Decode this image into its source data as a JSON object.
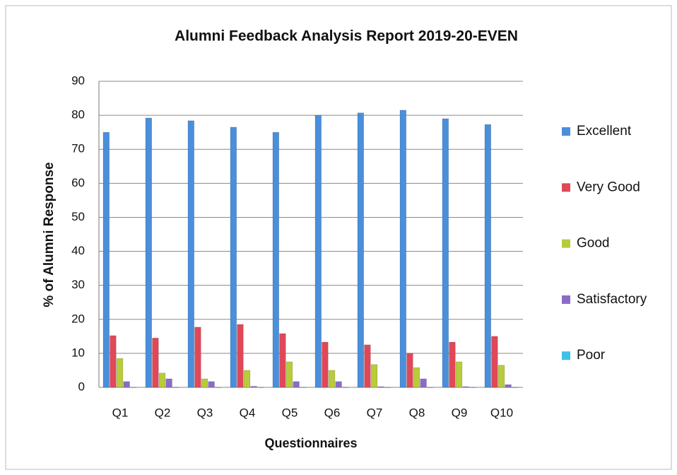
{
  "chart_data": {
    "type": "bar",
    "title": "Alumni Feedback Analysis Report 2019-20-EVEN",
    "y_label": "% of Alumni Response",
    "x_label": "Questionnaires",
    "categories": [
      "Q1",
      "Q2",
      "Q3",
      "Q4",
      "Q5",
      "Q6",
      "Q7",
      "Q8",
      "Q9",
      "Q10"
    ],
    "series": [
      {
        "name": "Excellent",
        "color": "#4a8fdc",
        "values": [
          75,
          79.2,
          78.4,
          76.5,
          75,
          80,
          80.7,
          81.5,
          79,
          77.3
        ]
      },
      {
        "name": "Very Good",
        "color": "#e04858",
        "values": [
          15.2,
          14.5,
          17.7,
          18.5,
          15.8,
          13.3,
          12.5,
          10,
          13.3,
          15
        ]
      },
      {
        "name": "Good",
        "color": "#b8cc3a",
        "values": [
          8.5,
          4.2,
          2.5,
          5,
          7.5,
          5,
          6.7,
          5.8,
          7.5,
          6.5
        ]
      },
      {
        "name": "Satisfactory",
        "color": "#8a6cc8",
        "values": [
          1.7,
          2.5,
          1.7,
          0.3,
          1.7,
          1.7,
          0.2,
          2.5,
          0.2,
          0.8
        ]
      },
      {
        "name": "Poor",
        "color": "#3fc0e8",
        "values": [
          0,
          0,
          0,
          0,
          0,
          0,
          0,
          0,
          0,
          0
        ]
      }
    ],
    "ylim": [
      0,
      90
    ],
    "yticks": [
      0,
      10,
      20,
      30,
      40,
      50,
      60,
      70,
      80,
      90
    ],
    "grid": true,
    "legend": "right"
  }
}
